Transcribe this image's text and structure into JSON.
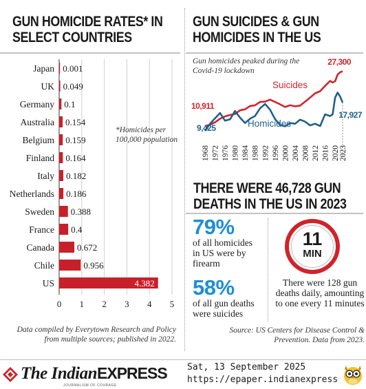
{
  "left": {
    "title": "GUN HOMICIDE RATES* IN\nSELECT COUNTRIES",
    "note": "*Homicides per 100,000 population",
    "source": "Data compiled by Everytown Research and Policy from multiple sources; published in 2022."
  },
  "right": {
    "title": "GUN SUICIDES & GUN\nHOMICIDES IN THE US",
    "annotation": "Gun homicides peaked during the Covid-19 lockdown",
    "deaths_title": "THERE WERE 46,728 GUN\nDEATHS IN THE US IN 2023",
    "stat1_value": "79%",
    "stat1_text": "of all homicides\nin US were by\nfirearm",
    "stat2_value": "58%",
    "stat2_text": "of all gun deaths\nwere suicides",
    "clock_number": "11",
    "clock_unit": "MIN",
    "daily_text": "There were 128 gun deaths daily, amounting to one every 11 minutes",
    "source": "Source: US Centers for Disease Control & Prevention. Data from 2023."
  },
  "footer": {
    "logo_main": "The Indian",
    "logo_express": "EXPRESS",
    "logo_tagline": "JOURNALISM OF COURAGE",
    "date": "Sat, 13 September 2025",
    "url": "https://epaper.indianexpress.com"
  },
  "colors": {
    "bar_red": "#c8202a",
    "suicides_red": "#d0232a",
    "homicides_blue": "#1f5f8b",
    "accent_blue": "#1e8ed6"
  },
  "chart_data": [
    {
      "type": "bar",
      "orientation": "horizontal",
      "title": "GUN HOMICIDE RATES* IN SELECT COUNTRIES",
      "categories": [
        "Japan",
        "UK",
        "Germany",
        "Australia",
        "Belgium",
        "Finland",
        "Italy",
        "Netherlands",
        "Sweden",
        "France",
        "Canada",
        "Chile",
        "US"
      ],
      "values": [
        0.001,
        0.049,
        0.1,
        0.154,
        0.159,
        0.164,
        0.182,
        0.186,
        0.388,
        0.4,
        0.672,
        0.956,
        4.382
      ],
      "value_labels": [
        "0.001",
        "0.049",
        "0.1",
        "0.154",
        "0.159",
        "0.164",
        "0.182",
        "0.186",
        "0.388",
        "0.4",
        "0.672",
        "0.956",
        "4.382"
      ],
      "xlim": [
        0,
        5
      ],
      "xticks": [
        "0",
        "1",
        "2",
        "3",
        "4",
        "5"
      ],
      "grid": true
    },
    {
      "type": "line",
      "title": "GUN SUICIDES & GUN HOMICIDES IN THE US",
      "x": [
        1968,
        1970,
        1972,
        1974,
        1976,
        1978,
        1980,
        1982,
        1984,
        1986,
        1988,
        1990,
        1992,
        1994,
        1996,
        1998,
        2000,
        2002,
        2004,
        2006,
        2008,
        2010,
        2012,
        2014,
        2016,
        2018,
        2019,
        2020,
        2021,
        2022,
        2023
      ],
      "xticks": [
        "1968",
        "1972",
        "1976",
        "1980",
        "1984",
        "1988",
        "1992",
        "1996",
        "2000",
        "2004",
        "2008",
        "2012",
        "2016",
        "2020",
        "2023"
      ],
      "series": [
        {
          "name": "Suicides",
          "values": [
            10911,
            11300,
            12000,
            13100,
            13800,
            14200,
            14500,
            15600,
            15900,
            16900,
            17100,
            18100,
            18200,
            18800,
            18100,
            17400,
            16600,
            17100,
            16800,
            17000,
            18200,
            19400,
            20700,
            21300,
            22900,
            24400,
            23900,
            24300,
            26300,
            27000,
            27300
          ],
          "start_label": "10,911",
          "end_label": "27,300"
        },
        {
          "name": "Homicides",
          "values": [
            9425,
            11600,
            13200,
            14800,
            12500,
            12900,
            15400,
            13400,
            11800,
            13100,
            13900,
            16200,
            17500,
            15800,
            13000,
            11200,
            10800,
            11800,
            11600,
            12800,
            12200,
            11100,
            11600,
            10900,
            14400,
            13900,
            14400,
            19400,
            20900,
            19700,
            17927
          ],
          "start_label": "9,425",
          "end_label": "17,927"
        }
      ]
    }
  ]
}
